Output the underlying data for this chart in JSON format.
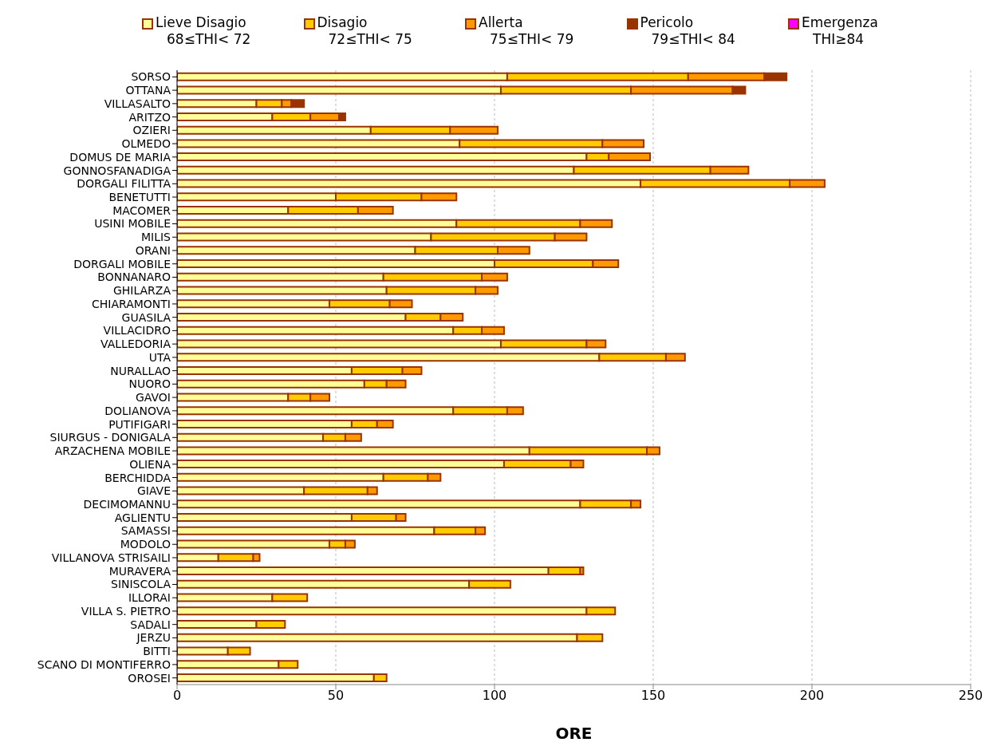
{
  "chart_data": {
    "type": "bar",
    "orientation": "horizontal",
    "stacked": true,
    "xlabel": "ORE",
    "legend": "top",
    "grid": "x",
    "categories": [
      "SORSO",
      "OTTANA",
      "VILLASALTO",
      "ARITZO",
      "OZIERI",
      "OLMEDO",
      "DOMUS DE MARIA",
      "GONNOSFANADIGA",
      "DORGALI FILITTA",
      "BENETUTTI",
      "MACOMER",
      "USINI MOBILE",
      "MILIS",
      "ORANI",
      "DORGALI MOBILE",
      "BONNANARO",
      "GHILARZA",
      "CHIARAMONTI",
      "GUASILA",
      "VILLACIDRO",
      "VALLEDORIA",
      "UTA",
      "NURALLAO",
      "NUORO",
      "GAVOI",
      "DOLIANOVA",
      "PUTIFIGARI",
      "SIURGUS - DONIGALA",
      "ARZACHENA MOBILE",
      "OLIENA",
      "BERCHIDDA",
      "GIAVE",
      "DECIMOMANNU",
      "AGLIENTU",
      "SAMASSI",
      "MODOLO",
      "VILLANOVA STRISAILI",
      "MURAVERA",
      "SINISCOLA",
      "ILLORAI",
      "VILLA S. PIETRO",
      "SADALI",
      "JERZU",
      "BITTI",
      "SCANO DI MONTIFERRO",
      "OROSEI"
    ],
    "series": [
      {
        "name": "Lieve Disagio\n68≤THI< 72",
        "color": "#ffff99",
        "values": [
          104,
          102,
          25,
          30,
          61,
          89,
          129,
          125,
          146,
          50,
          35,
          88,
          80,
          75,
          100,
          65,
          66,
          48,
          72,
          87,
          102,
          133,
          55,
          59,
          35,
          87,
          55,
          46,
          111,
          103,
          65,
          40,
          127,
          55,
          81,
          48,
          13,
          117,
          92,
          30,
          129,
          25,
          126,
          16,
          32,
          62
        ]
      },
      {
        "name": "Disagio\n72≤THI< 75",
        "color": "#ffcc00",
        "values": [
          57,
          41,
          8,
          12,
          25,
          45,
          7,
          43,
          47,
          27,
          22,
          39,
          39,
          26,
          31,
          31,
          28,
          19,
          11,
          9,
          27,
          21,
          16,
          7,
          7,
          17,
          8,
          7,
          37,
          21,
          14,
          20,
          16,
          14,
          13,
          5,
          11,
          10,
          13,
          11,
          9,
          9,
          8,
          7,
          6,
          4
        ]
      },
      {
        "name": "Allerta\n75≤THI< 79",
        "color": "#ff9900",
        "values": [
          24,
          32,
          3,
          9,
          15,
          13,
          13,
          12,
          11,
          11,
          11,
          10,
          10,
          10,
          8,
          8,
          7,
          7,
          7,
          7,
          6,
          6,
          6,
          6,
          6,
          5,
          5,
          5,
          4,
          4,
          4,
          3,
          3,
          3,
          3,
          3,
          2,
          1,
          null,
          null,
          null,
          null,
          null,
          null,
          null,
          null
        ]
      },
      {
        "name": "Pericolo\n79≤THI< 84",
        "color": "#993300",
        "values": [
          7,
          4,
          4,
          2,
          null,
          null,
          null,
          null,
          null,
          null,
          null,
          null,
          null,
          null,
          null,
          null,
          null,
          null,
          null,
          null,
          null,
          null,
          null,
          null,
          null,
          null,
          null,
          null,
          null,
          null,
          null,
          null,
          null,
          null,
          null,
          null,
          null,
          null,
          null,
          null,
          null,
          null,
          null,
          null,
          null,
          null
        ]
      },
      {
        "name": "Emergenza\nTHI≥84",
        "color": "#ff00ff",
        "values": [
          null,
          null,
          null,
          null,
          null,
          null,
          null,
          null,
          null,
          null,
          null,
          null,
          null,
          null,
          null,
          null,
          null,
          null,
          null,
          null,
          null,
          null,
          null,
          null,
          null,
          null,
          null,
          null,
          null,
          null,
          null,
          null,
          null,
          null,
          null,
          null,
          null,
          null,
          null,
          null,
          null,
          null,
          null,
          null,
          null,
          null
        ]
      }
    ],
    "xlim": [
      0,
      250
    ],
    "xticks": [
      0,
      50,
      100,
      150,
      200,
      250
    ]
  }
}
